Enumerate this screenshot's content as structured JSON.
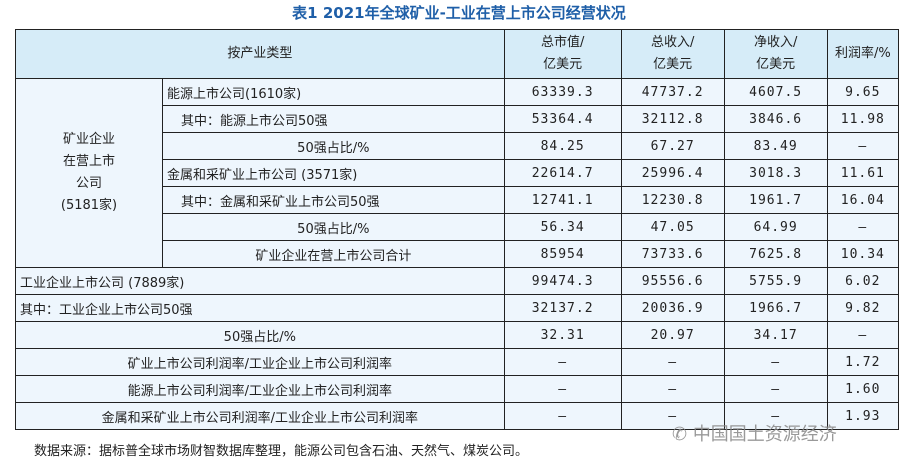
{
  "title": "表1  2021年全球矿业-工业在营上市公司经营状况",
  "headers": {
    "category": "按产业类型",
    "market_cap": "总市值/\n亿美元",
    "revenue": "总收入/\n亿美元",
    "net_income": "净收入/\n亿美元",
    "margin": "利润率/%"
  },
  "group_label": "矿业企业\n在营上市\n公司\n(5181家)",
  "rows": [
    {
      "label": "能源上市公司(1610家)",
      "v": [
        "63339.3",
        "47737.2",
        "4607.5",
        "9.65"
      ]
    },
    {
      "label": "其中：能源上市公司50强",
      "v": [
        "53364.4",
        "32112.8",
        "3846.6",
        "11.98"
      ]
    },
    {
      "label": "50强占比/%",
      "v": [
        "84.25",
        "67.27",
        "83.49",
        "—"
      ]
    },
    {
      "label": "金属和采矿业上市公司 (3571家)",
      "v": [
        "22614.7",
        "25996.4",
        "3018.3",
        "11.61"
      ]
    },
    {
      "label": "其中：金属和采矿业上市公司50强",
      "v": [
        "12741.1",
        "12230.8",
        "1961.7",
        "16.04"
      ]
    },
    {
      "label": "50强占比/%",
      "v": [
        "56.34",
        "47.05",
        "64.99",
        "—"
      ]
    },
    {
      "label": "矿业企业在营上市公司合计",
      "v": [
        "85954",
        "73733.6",
        "7625.8",
        "10.34"
      ]
    },
    {
      "label": "工业企业上市公司 (7889家)",
      "v": [
        "99474.3",
        "95556.6",
        "5755.9",
        "6.02"
      ]
    },
    {
      "label": "其中：工业企业上市公司50强",
      "v": [
        "32137.2",
        "20036.9",
        "1966.7",
        "9.82"
      ]
    },
    {
      "label": "50强占比/%",
      "v": [
        "32.31",
        "20.97",
        "34.17",
        "—"
      ]
    },
    {
      "label": "矿业上市公司利润率/工业企业上市公司利润率",
      "v": [
        "—",
        "—",
        "—",
        "1.72"
      ]
    },
    {
      "label": "能源上市公司利润率/工业企业上市公司利润率",
      "v": [
        "—",
        "—",
        "—",
        "1.60"
      ]
    },
    {
      "label": "金属和采矿业上市公司利润率/工业企业上市公司利润率",
      "v": [
        "—",
        "—",
        "—",
        "1.93"
      ]
    }
  ],
  "footnote": "数据来源：据标普全球市场财智数据库整理，能源公司包含石油、天然气、煤炭公司。",
  "watermark": "中国国土资源经济"
}
